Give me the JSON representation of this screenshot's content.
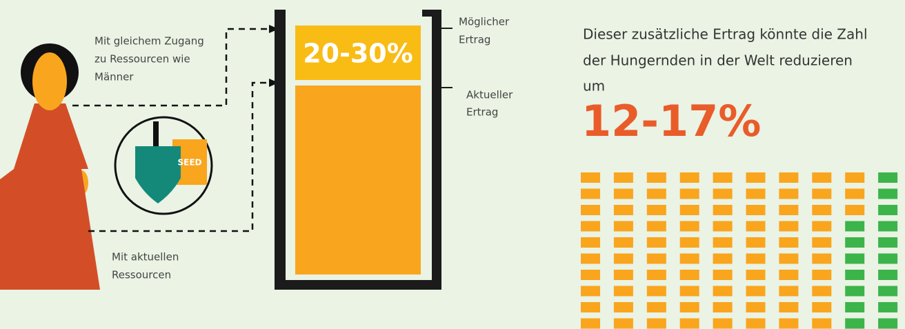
{
  "access_label": [
    "Mit gleichem Zugang",
    "zu Ressourcen wie",
    "Männer"
  ],
  "current_label": [
    "Mit aktuellen",
    "Ressourcen"
  ],
  "seed": "SEED",
  "yield_gain": "20-30%",
  "possible_yield": [
    "Möglicher",
    "Ertrag"
  ],
  "current_yield": [
    "Aktueller",
    "Ertrag"
  ],
  "statement": [
    "Dieser zusätzliche Ertrag könnte die Zahl",
    "der Hungernden in der Welt reduzieren",
    "um"
  ],
  "hunger_reduction": "12-17%"
}
